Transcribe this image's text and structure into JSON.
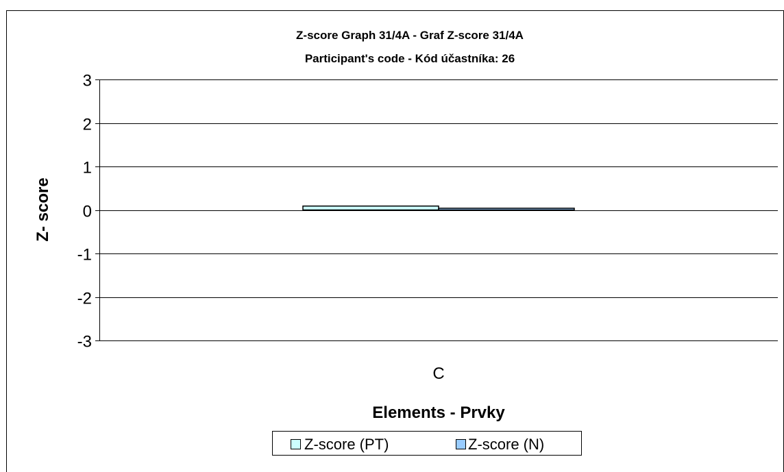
{
  "chart_data": {
    "type": "bar",
    "title_line1": "Z-score Graph 31/4A - Graf Z-score 31/4A",
    "title_line2": "Participant's code - Kód účastníka:  26",
    "xlabel": "Elements - Prvky",
    "ylabel": "Z- score",
    "categories": [
      "C"
    ],
    "series": [
      {
        "name": "Z-score (PT)",
        "values": [
          0.09
        ],
        "color": "#ccffff"
      },
      {
        "name": "Z-score (N)",
        "values": [
          0.04
        ],
        "color": "#99ccff"
      }
    ],
    "ylim": [
      -3,
      3
    ],
    "yticks": [
      "3",
      "2",
      "1",
      "0",
      "-1",
      "-2",
      "-3"
    ],
    "grid": true,
    "legend_position": "bottom"
  }
}
